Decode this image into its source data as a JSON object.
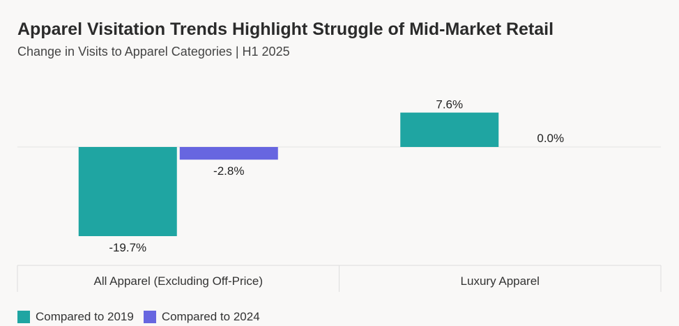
{
  "header": {
    "title": "Apparel Visitation Trends Highlight Struggle of Mid-Market Retail",
    "subtitle": "Change in Visits to Apparel Categories | H1 2025"
  },
  "colors": {
    "series_2019": "#1fa5a2",
    "series_2024": "#6766e0",
    "gridline": "#e3e3e3",
    "axis_box": "#dddddd"
  },
  "chart_data": {
    "type": "bar",
    "title": "Apparel Visitation Trends Highlight Struggle of Mid-Market Retail",
    "subtitle": "Change in Visits to Apparel Categories | H1 2025",
    "categories": [
      "All Apparel (Excluding Off-Price)",
      "Luxury Apparel"
    ],
    "series": [
      {
        "name": "Compared to 2019",
        "values": [
          -19.7,
          7.6
        ],
        "labels": [
          "-19.7%",
          "7.6%"
        ]
      },
      {
        "name": "Compared to 2024",
        "values": [
          -2.8,
          0.0
        ],
        "labels": [
          "-2.8%",
          "0.0%"
        ]
      }
    ],
    "xlabel": "",
    "ylabel": "",
    "legend": "bottom-left",
    "grid": false
  }
}
